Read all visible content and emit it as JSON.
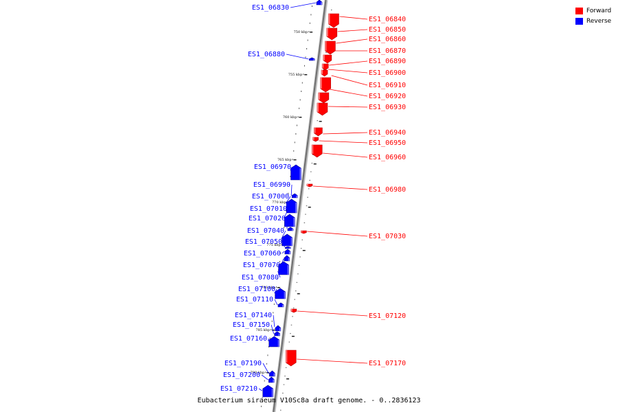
{
  "legend": {
    "forward_label": "Forward",
    "reverse_label": "Reverse",
    "forward_color": "#ff0000",
    "reverse_color": "#0000ff"
  },
  "footer": {
    "caption": "Eubacterium siraeum V10Sc8a draft genome. - 0..2836123"
  },
  "ticks": [
    "750 kbp",
    "755 kbp",
    "760 kbp",
    "765 kbp",
    "770 kbp",
    "775 kbp",
    "780 kbp",
    "785 kbp",
    "790 kbp"
  ],
  "genes_forward": [
    "ES1_06840",
    "ES1_06850",
    "ES1_06860",
    "ES1_06870",
    "ES1_06890",
    "ES1_06900",
    "ES1_06910",
    "ES1_06920",
    "ES1_06930",
    "ES1_06940",
    "ES1_06950",
    "ES1_06960",
    "ES1_06980",
    "ES1_07030",
    "ES1_07120",
    "ES1_07170"
  ],
  "genes_reverse": [
    "ES1_06830",
    "ES1_06880",
    "ES1_06970",
    "ES1_06990",
    "ES1_07000",
    "ES1_07010",
    "ES1_07020",
    "ES1_07040",
    "ES1_07050",
    "ES1_07060",
    "ES1_07070",
    "ES1_07080",
    "ES1_07100",
    "ES1_07110",
    "ES1_07140",
    "ES1_07150",
    "ES1_07160",
    "ES1_07190",
    "ES1_07200",
    "ES1_07210"
  ]
}
